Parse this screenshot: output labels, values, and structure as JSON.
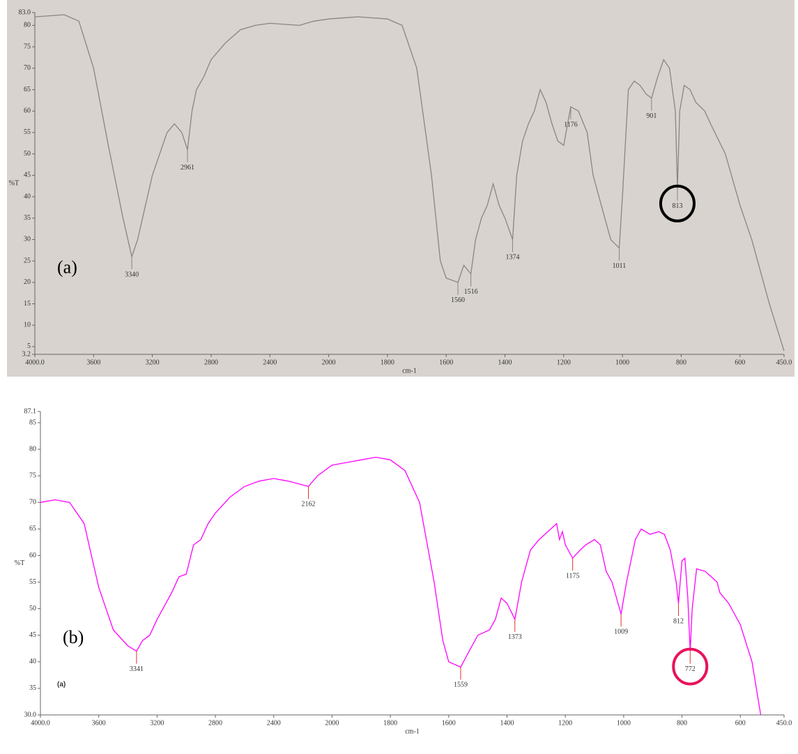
{
  "chart_data": [
    {
      "type": "line",
      "panel_label": "(a)",
      "ylabel": "%T",
      "xlabel": "cm-1",
      "color": "#8a8583",
      "background": "#d8d3ce",
      "tick_color": "#8a8583",
      "xlim": [
        4000,
        450
      ],
      "x_break": 2000,
      "xticks": [
        {
          "value": 4000,
          "label": "4000.0"
        },
        3600,
        3200,
        2800,
        2400,
        2000,
        1800,
        1600,
        1400,
        1200,
        1000,
        800,
        600,
        {
          "value": 450,
          "label": "450.0"
        }
      ],
      "ylim": [
        3.2,
        83
      ],
      "yticks": [
        3.2,
        5,
        10,
        15,
        20,
        25,
        30,
        35,
        40,
        45,
        50,
        55,
        60,
        65,
        70,
        75,
        80,
        {
          "value": 83,
          "label": "83.0"
        }
      ],
      "x": [
        4000,
        3800,
        3700,
        3600,
        3500,
        3400,
        3340,
        3300,
        3200,
        3100,
        3050,
        3000,
        2961,
        2930,
        2900,
        2850,
        2800,
        2700,
        2600,
        2500,
        2400,
        2200,
        2100,
        2000,
        1900,
        1800,
        1750,
        1700,
        1650,
        1620,
        1600,
        1560,
        1540,
        1516,
        1500,
        1480,
        1460,
        1440,
        1420,
        1400,
        1374,
        1360,
        1340,
        1320,
        1300,
        1280,
        1260,
        1240,
        1220,
        1200,
        1176,
        1150,
        1120,
        1100,
        1060,
        1040,
        1011,
        1000,
        980,
        960,
        940,
        920,
        901,
        880,
        860,
        840,
        820,
        813,
        805,
        790,
        770,
        750,
        720,
        700,
        650,
        600,
        560,
        500,
        450
      ],
      "values": [
        82,
        82.5,
        81,
        70,
        52,
        35,
        26,
        30,
        45,
        55,
        57,
        55,
        51,
        60,
        65,
        68,
        72,
        76,
        79,
        80,
        80.5,
        80,
        81,
        81.5,
        82,
        81.5,
        80,
        70,
        45,
        25,
        21,
        20,
        24,
        22,
        30,
        35,
        38,
        43,
        38,
        35,
        30,
        45,
        53,
        57,
        60,
        65,
        62,
        57,
        53,
        52,
        61,
        60,
        55,
        45,
        35,
        30,
        28,
        40,
        65,
        67,
        66,
        64,
        63,
        68,
        72,
        70,
        60,
        42,
        60,
        66,
        65,
        62,
        60,
        57,
        50,
        38,
        30,
        15,
        4
      ],
      "peaks": [
        3340,
        2961,
        1560,
        1516,
        1374,
        1176,
        1011,
        901,
        813
      ],
      "highlight": 813,
      "highlight_color": "#000000"
    },
    {
      "type": "line",
      "panel_label": "(b)",
      "inset_label": "(a)",
      "ylabel": "%T",
      "xlabel": "cm-1",
      "color": "#ff00ff",
      "background": "#ffffff",
      "tick_color": "#e0302a",
      "xlim": [
        4000,
        450
      ],
      "x_break": 2000,
      "xticks": [
        {
          "value": 4000,
          "label": "4000.0"
        },
        3600,
        3200,
        2800,
        2400,
        2000,
        1800,
        1600,
        1400,
        1200,
        1000,
        800,
        600,
        {
          "value": 450,
          "label": "450.0"
        }
      ],
      "ylim": [
        30,
        87.1
      ],
      "yticks": [
        {
          "value": 30,
          "label": "30.0"
        },
        35,
        40,
        45,
        50,
        55,
        60,
        65,
        70,
        75,
        80,
        85,
        87.1
      ],
      "x": [
        4000,
        3900,
        3800,
        3700,
        3650,
        3600,
        3550,
        3500,
        3400,
        3341,
        3300,
        3250,
        3200,
        3100,
        3050,
        3000,
        2950,
        2900,
        2850,
        2800,
        2700,
        2600,
        2500,
        2400,
        2300,
        2162,
        2100,
        2000,
        1900,
        1850,
        1800,
        1750,
        1700,
        1650,
        1620,
        1600,
        1559,
        1530,
        1500,
        1460,
        1440,
        1420,
        1400,
        1373,
        1350,
        1320,
        1290,
        1250,
        1230,
        1220,
        1210,
        1200,
        1175,
        1150,
        1130,
        1100,
        1080,
        1060,
        1040,
        1009,
        990,
        960,
        940,
        910,
        880,
        860,
        840,
        820,
        812,
        800,
        790,
        780,
        772,
        765,
        750,
        720,
        680,
        670,
        640,
        600,
        560,
        530
      ],
      "values": [
        70,
        70.5,
        70,
        66,
        60,
        54,
        50,
        46,
        43,
        42,
        44,
        45,
        48,
        53,
        56,
        56.5,
        62,
        63,
        66,
        68,
        71,
        73,
        74,
        74.5,
        74,
        73,
        75,
        77,
        78,
        78.5,
        78,
        76,
        70,
        55,
        44,
        40,
        39,
        42,
        45,
        46,
        48,
        52,
        51,
        48,
        55,
        61,
        63,
        65,
        66,
        63,
        64.5,
        62,
        59.5,
        61,
        62,
        63,
        62,
        57,
        55,
        49,
        55,
        63,
        65,
        64,
        64.5,
        64,
        61,
        55,
        51,
        59,
        59.5,
        52,
        42,
        50,
        57.5,
        57,
        55,
        53,
        51,
        47,
        40,
        30
      ],
      "peaks": [
        3341,
        2162,
        1559,
        1373,
        1175,
        1009,
        812,
        772
      ],
      "highlight": 772,
      "highlight_color": "#e8125c"
    }
  ]
}
